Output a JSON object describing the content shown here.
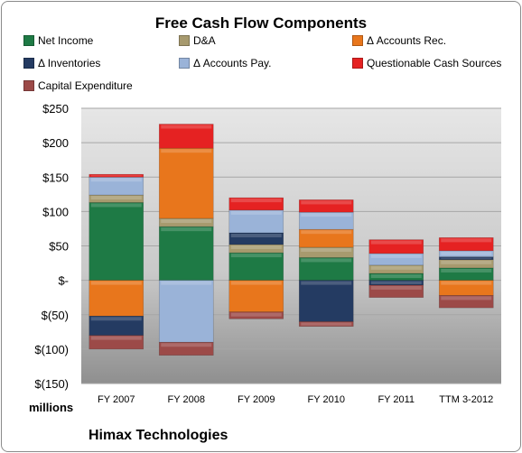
{
  "chart_data": {
    "type": "bar",
    "stacked": true,
    "title": "Free Cash Flow Components",
    "units_label": "millions",
    "company": "Himax Technologies",
    "categories": [
      "FY 2007",
      "FY 2008",
      "FY 2009",
      "FY 2010",
      "FY 2011",
      "TTM 3-2012"
    ],
    "ylim": [
      -150,
      250
    ],
    "yticks": [
      250,
      200,
      150,
      100,
      50,
      0,
      -50,
      -100,
      -150
    ],
    "ytick_labels": [
      "$250",
      "$200",
      "$150",
      "$100",
      "$50",
      "$-",
      "$(50)",
      "$(100)",
      "$(150)"
    ],
    "legend_placement": "top",
    "series": [
      {
        "name": "Net Income",
        "color": "#1e7a45",
        "values": [
          113,
          78,
          40,
          33,
          10,
          18
        ]
      },
      {
        "name": "D&A",
        "color": "#a79a6e",
        "values": [
          11,
          12,
          12,
          15,
          12,
          12
        ]
      },
      {
        "name": "Δ Accounts Rec.",
        "color": "#e8761c",
        "values": [
          -52,
          102,
          -46,
          26,
          0,
          -22
        ]
      },
      {
        "name": "Δ Inventories",
        "color": "#243b62",
        "values": [
          -28,
          0,
          17,
          -60,
          -7,
          4
        ]
      },
      {
        "name": "Δ Accounts Pay.",
        "color": "#9ab3d8",
        "values": [
          26,
          -90,
          33,
          25,
          17,
          9
        ]
      },
      {
        "name": "Questionable Cash Sources",
        "color": "#e52222",
        "values": [
          4,
          35,
          18,
          18,
          20,
          19
        ]
      },
      {
        "name": "Capital Expenditure",
        "color": "#9c4a48",
        "values": [
          -20,
          -19,
          -10,
          -7,
          -18,
          -18
        ]
      }
    ]
  }
}
